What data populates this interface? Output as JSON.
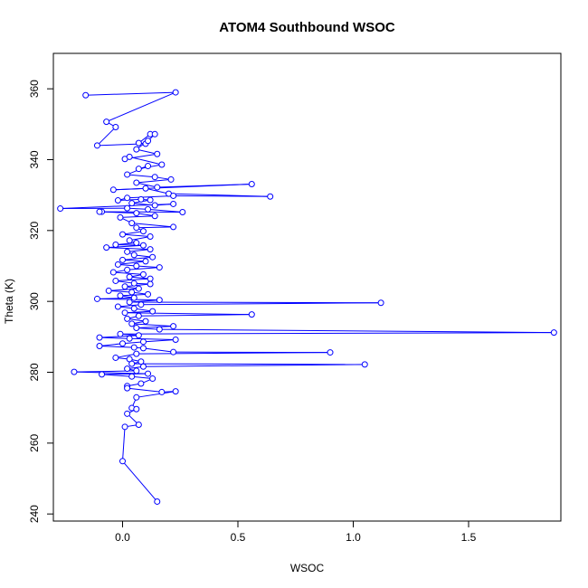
{
  "chart_data": {
    "type": "line",
    "title": "ATOM4 Southbound WSOC",
    "xlabel": "WSOC",
    "ylabel": "Theta (K)",
    "xlim": [
      -0.3,
      1.9
    ],
    "ylim": [
      238,
      370
    ],
    "x_ticks": [
      0,
      0.5,
      1,
      1.5
    ],
    "x_tick_labels": [
      "0.0",
      "0.5",
      "1.0",
      "1.5"
    ],
    "y_ticks": [
      240,
      260,
      280,
      300,
      320,
      340,
      360
    ],
    "y_tick_labels": [
      "240",
      "260",
      "280",
      "300",
      "320",
      "340",
      "360"
    ],
    "series": [
      {
        "color": "#0000ff",
        "marker": "open-circle",
        "connected": true,
        "points": [
          [
            -0.16,
            358.2
          ],
          [
            0.23,
            359.0
          ],
          [
            -0.07,
            350.7
          ],
          [
            -0.03,
            349.2
          ],
          [
            -0.11,
            344.0
          ],
          [
            0.1,
            344.5
          ],
          [
            0.07,
            344.7
          ],
          [
            0.12,
            347.2
          ],
          [
            0.14,
            347.2
          ],
          [
            0.11,
            345.3
          ],
          [
            0.06,
            342.9
          ],
          [
            0.15,
            341.6
          ],
          [
            0.01,
            340.2
          ],
          [
            0.03,
            340.8
          ],
          [
            0.17,
            338.6
          ],
          [
            0.07,
            337.4
          ],
          [
            0.11,
            338.2
          ],
          [
            0.02,
            335.8
          ],
          [
            0.14,
            335.1
          ],
          [
            0.21,
            334.4
          ],
          [
            0.06,
            333.5
          ],
          [
            0.15,
            332.2
          ],
          [
            0.56,
            333.1
          ],
          [
            -0.04,
            331.5
          ],
          [
            0.1,
            331.9
          ],
          [
            0.2,
            330.4
          ],
          [
            0.64,
            329.6
          ],
          [
            0.22,
            329.8
          ],
          [
            0.02,
            329.2
          ],
          [
            -0.02,
            328.5
          ],
          [
            0.08,
            328.8
          ],
          [
            0.12,
            328.6
          ],
          [
            0.04,
            327.7
          ],
          [
            0.14,
            327.1
          ],
          [
            0.22,
            327.5
          ],
          [
            -0.27,
            326.2
          ],
          [
            0.02,
            326.3
          ],
          [
            0.11,
            326.0
          ],
          [
            0.26,
            325.2
          ],
          [
            -0.09,
            325.3
          ],
          [
            -0.1,
            325.3
          ],
          [
            0.06,
            324.9
          ],
          [
            0.14,
            324.1
          ],
          [
            -0.01,
            323.7
          ],
          [
            0.04,
            322.1
          ],
          [
            0.22,
            321.0
          ],
          [
            0.06,
            320.8
          ],
          [
            0.09,
            319.8
          ],
          [
            0.0,
            318.9
          ],
          [
            0.12,
            318.3
          ],
          [
            0.03,
            317.2
          ],
          [
            0.06,
            316.5
          ],
          [
            -0.03,
            316.0
          ],
          [
            0.09,
            315.8
          ],
          [
            -0.07,
            315.2
          ],
          [
            0.12,
            314.7
          ],
          [
            0.02,
            314.0
          ],
          [
            0.05,
            313.1
          ],
          [
            0.13,
            312.5
          ],
          [
            0.0,
            311.7
          ],
          [
            0.1,
            311.3
          ],
          [
            -0.02,
            310.4
          ],
          [
            0.06,
            310.0
          ],
          [
            0.16,
            309.6
          ],
          [
            0.02,
            308.9
          ],
          [
            -0.04,
            308.2
          ],
          [
            0.09,
            307.6
          ],
          [
            0.03,
            306.9
          ],
          [
            0.12,
            306.4
          ],
          [
            -0.03,
            305.8
          ],
          [
            0.05,
            305.1
          ],
          [
            0.12,
            304.9
          ],
          [
            0.01,
            304.2
          ],
          [
            0.07,
            303.6
          ],
          [
            -0.06,
            303.0
          ],
          [
            0.04,
            302.6
          ],
          [
            0.11,
            302.0
          ],
          [
            -0.01,
            301.6
          ],
          [
            0.05,
            301.0
          ],
          [
            -0.11,
            300.7
          ],
          [
            0.16,
            300.4
          ],
          [
            0.03,
            299.8
          ],
          [
            1.12,
            299.6
          ],
          [
            0.08,
            299.1
          ],
          [
            -0.02,
            298.5
          ],
          [
            0.05,
            298.0
          ],
          [
            0.13,
            297.2
          ],
          [
            0.01,
            296.8
          ],
          [
            0.56,
            296.3
          ],
          [
            0.07,
            295.9
          ],
          [
            0.02,
            295.1
          ],
          [
            0.1,
            294.4
          ],
          [
            0.04,
            293.7
          ],
          [
            0.22,
            293.0
          ],
          [
            0.06,
            292.5
          ],
          [
            0.16,
            292.1
          ],
          [
            1.87,
            291.2
          ],
          [
            -0.01,
            290.8
          ],
          [
            0.07,
            290.4
          ],
          [
            -0.1,
            289.8
          ],
          [
            0.03,
            289.5
          ],
          [
            0.23,
            289.2
          ],
          [
            0.09,
            288.6
          ],
          [
            0.0,
            288.1
          ],
          [
            -0.1,
            287.4
          ],
          [
            0.05,
            287.0
          ],
          [
            0.09,
            286.8
          ],
          [
            0.22,
            285.7
          ],
          [
            0.9,
            285.6
          ],
          [
            0.06,
            285.2
          ],
          [
            -0.03,
            284.1
          ],
          [
            0.03,
            283.7
          ],
          [
            0.08,
            283.0
          ],
          [
            0.04,
            282.4
          ],
          [
            1.05,
            282.2
          ],
          [
            0.09,
            281.6
          ],
          [
            0.02,
            281.0
          ],
          [
            0.06,
            280.4
          ],
          [
            -0.21,
            280.1
          ],
          [
            0.11,
            279.6
          ],
          [
            -0.09,
            279.4
          ],
          [
            0.04,
            278.8
          ],
          [
            0.13,
            278.2
          ],
          [
            0.08,
            276.8
          ],
          [
            0.02,
            276.1
          ],
          [
            0.02,
            275.5
          ],
          [
            0.17,
            274.4
          ],
          [
            0.23,
            274.6
          ],
          [
            0.06,
            272.9
          ],
          [
            0.04,
            269.9
          ],
          [
            0.06,
            269.6
          ],
          [
            0.02,
            268.3
          ],
          [
            0.07,
            265.2
          ],
          [
            0.01,
            264.6
          ],
          [
            0.0,
            254.9
          ],
          [
            0.15,
            243.5
          ]
        ]
      }
    ]
  }
}
